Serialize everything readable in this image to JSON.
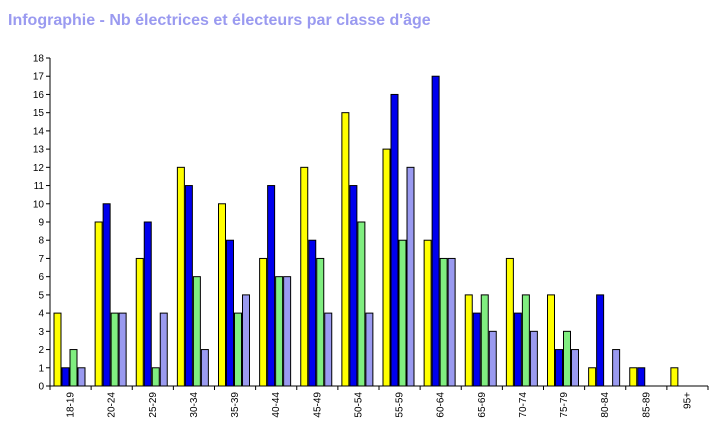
{
  "chart_data": {
    "type": "bar",
    "title": "Infographie - Nb électrices et électeurs par classe d'âge",
    "xlabel": "",
    "ylabel": "",
    "ylim": [
      0,
      18
    ],
    "yticks": [
      0,
      1,
      2,
      3,
      4,
      5,
      6,
      7,
      8,
      9,
      10,
      11,
      12,
      13,
      14,
      15,
      16,
      17,
      18
    ],
    "grid": false,
    "legend": "none",
    "categories": [
      "18-19",
      "20-24",
      "25-29",
      "30-34",
      "35-39",
      "40-44",
      "45-49",
      "50-54",
      "55-59",
      "60-64",
      "65-69",
      "70-74",
      "75-79",
      "80-84",
      "85-89",
      "95+"
    ],
    "series": [
      {
        "color": "#ffff00",
        "values": [
          4,
          9,
          7,
          12,
          10,
          7,
          12,
          15,
          13,
          8,
          5,
          7,
          5,
          1,
          1,
          1
        ]
      },
      {
        "color": "#0000ee",
        "values": [
          1,
          10,
          9,
          11,
          8,
          11,
          8,
          11,
          16,
          17,
          4,
          4,
          2,
          5,
          1,
          0
        ]
      },
      {
        "color": "#80ee80",
        "values": [
          2,
          4,
          1,
          6,
          4,
          6,
          7,
          9,
          8,
          7,
          5,
          5,
          3,
          0,
          0,
          0
        ]
      },
      {
        "color": "#9a9af0",
        "values": [
          1,
          4,
          4,
          2,
          5,
          6,
          4,
          4,
          12,
          7,
          3,
          3,
          2,
          2,
          0,
          0
        ]
      }
    ]
  }
}
